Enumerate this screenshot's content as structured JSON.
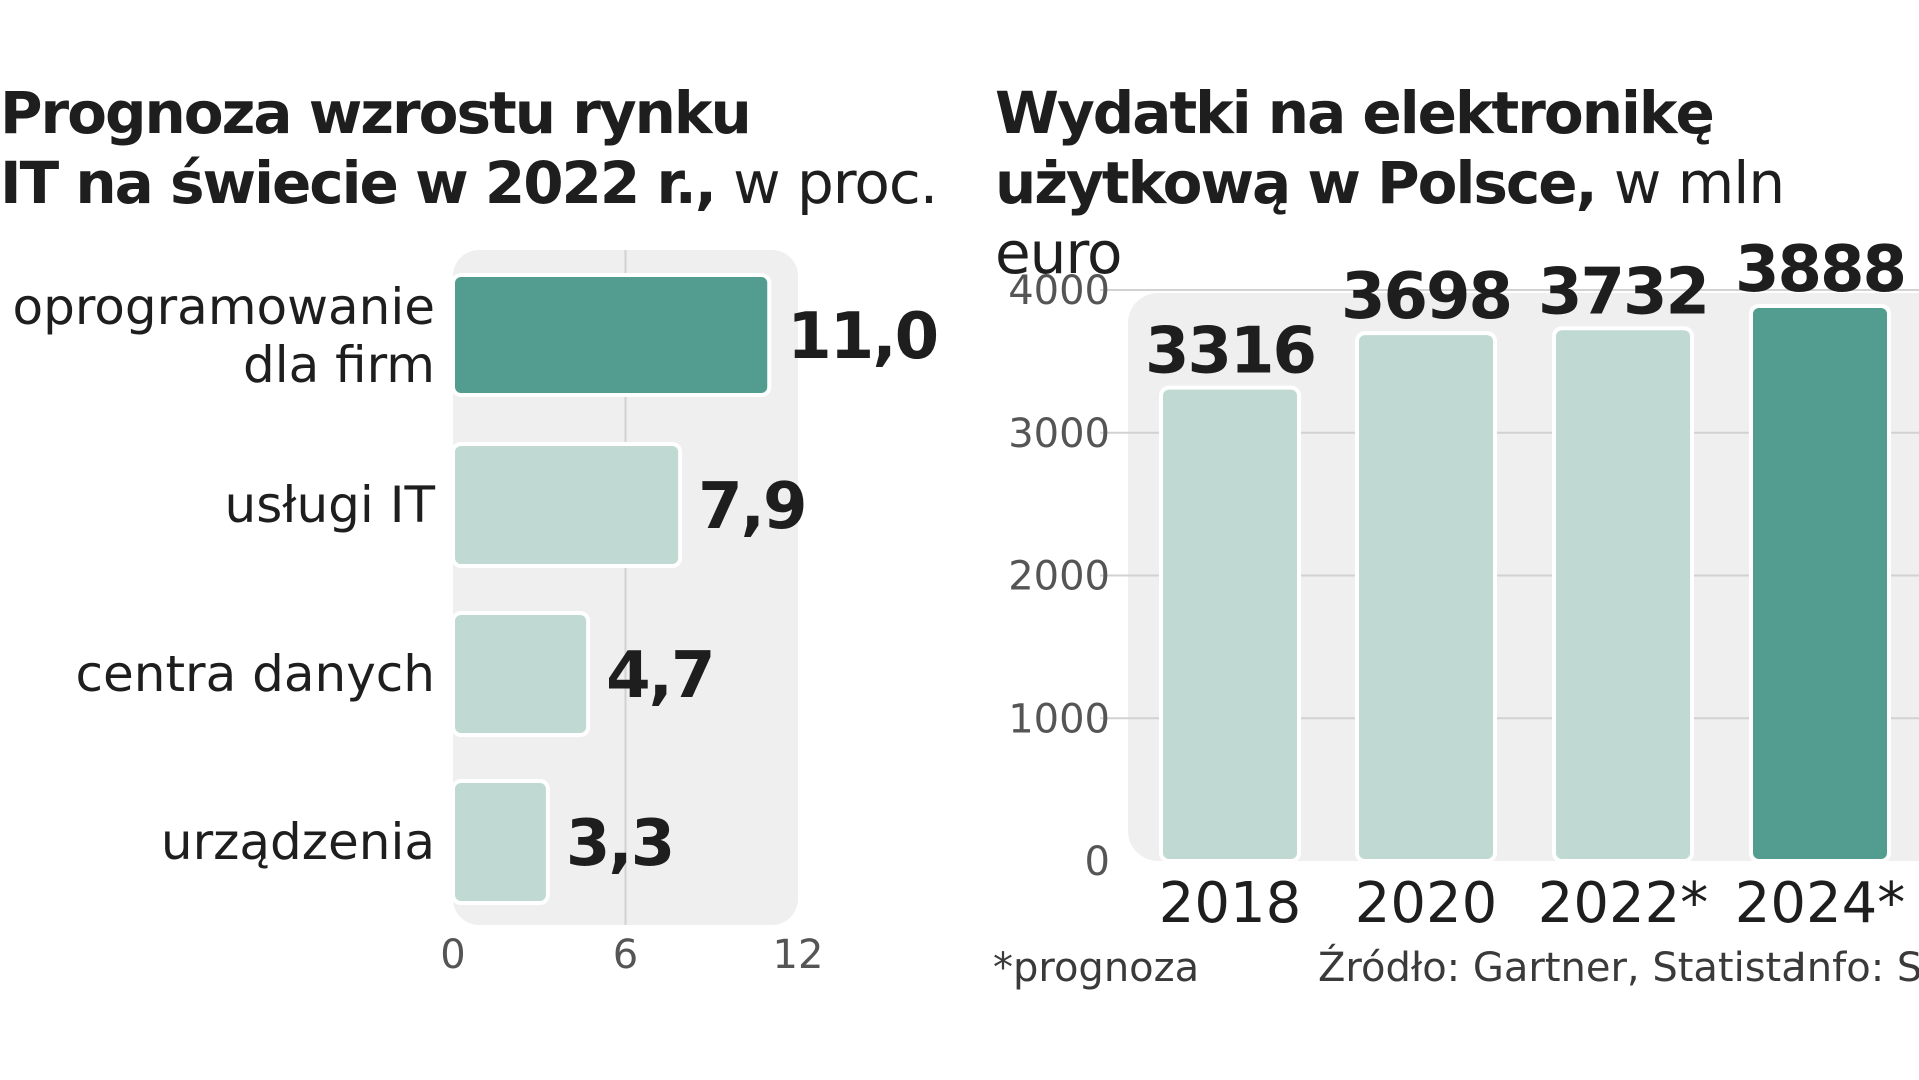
{
  "chart_data": [
    {
      "type": "bar",
      "orientation": "horizontal",
      "title": "Prognoza wzrostu rynku IT na świecie w 2022 r.,",
      "title_line1": "Prognoza wzrostu rynku",
      "title_line2": "IT na świecie w 2022 r.,",
      "unit": "w proc.",
      "categories": [
        "oprogramowanie dla firm",
        "usługi IT",
        "centra danych",
        "urządzenia"
      ],
      "category_lines": [
        [
          "oprogramowanie",
          "dla firm"
        ],
        [
          "usługi IT"
        ],
        [
          "centra danych"
        ],
        [
          "urządzenia"
        ]
      ],
      "values": [
        11.0,
        7.9,
        4.7,
        3.3
      ],
      "value_labels": [
        "11,0",
        "7,9",
        "4,7",
        "3,3"
      ],
      "xlim": [
        0,
        12
      ],
      "xticks": [
        0,
        6,
        12
      ],
      "xtick_labels": [
        "0",
        "6",
        "12"
      ],
      "highlight_index": 0,
      "grid": true
    },
    {
      "type": "bar",
      "orientation": "vertical",
      "title": "Wydatki na elektronikę użytkową w Polsce,",
      "title_line1": "Wydatki na elektronikę",
      "title_line2": "użytkową w Polsce,",
      "unit": "w mln euro",
      "categories": [
        "2018",
        "2020",
        "2022*",
        "2024*"
      ],
      "values": [
        3316,
        3698,
        3732,
        3888
      ],
      "value_labels": [
        "3316",
        "3698",
        "3732",
        "3888"
      ],
      "ylim": [
        0,
        4000
      ],
      "yticks": [
        0,
        1000,
        2000,
        3000,
        4000
      ],
      "ytick_labels": [
        "0",
        "1000",
        "2000",
        "3000",
        "4000"
      ],
      "highlight_index": 3,
      "grid": true
    }
  ],
  "footer": {
    "note": "*prognoza",
    "source": "Źródło: Gartner, Statista",
    "info": "Info: S"
  },
  "colors": {
    "highlight": "#529d8f",
    "bar": "#c0d9d2",
    "bar_border": "#ffffff",
    "panel": "#efefef",
    "grid": "#d2d2d2",
    "text": "#1e1e1e"
  }
}
